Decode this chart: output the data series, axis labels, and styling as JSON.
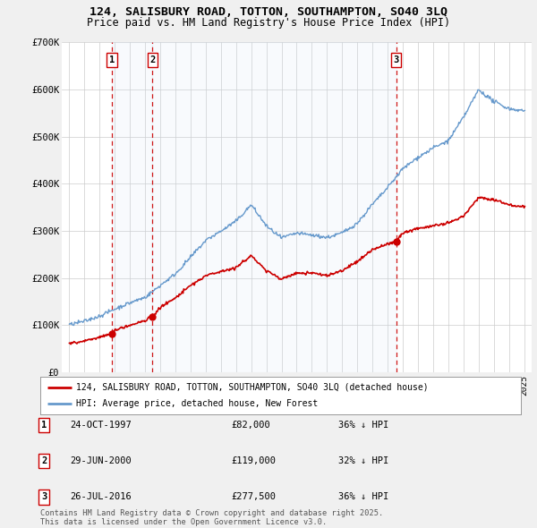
{
  "title": "124, SALISBURY ROAD, TOTTON, SOUTHAMPTON, SO40 3LQ",
  "subtitle": "Price paid vs. HM Land Registry's House Price Index (HPI)",
  "red_label": "124, SALISBURY ROAD, TOTTON, SOUTHAMPTON, SO40 3LQ (detached house)",
  "blue_label": "HPI: Average price, detached house, New Forest",
  "footnote": "Contains HM Land Registry data © Crown copyright and database right 2025.\nThis data is licensed under the Open Government Licence v3.0.",
  "sales": [
    {
      "num": 1,
      "date": "24-OCT-1997",
      "price": 82000,
      "pct": "36%",
      "dir": "↓",
      "x": 1997.81
    },
    {
      "num": 2,
      "date": "29-JUN-2000",
      "price": 119000,
      "pct": "32%",
      "dir": "↓",
      "x": 2000.49
    },
    {
      "num": 3,
      "date": "26-JUL-2016",
      "price": 277500,
      "pct": "36%",
      "dir": "↓",
      "x": 2016.57
    }
  ],
  "ylim": [
    0,
    700000
  ],
  "yticks": [
    0,
    100000,
    200000,
    300000,
    400000,
    500000,
    600000,
    700000
  ],
  "ytick_labels": [
    "£0",
    "£100K",
    "£200K",
    "£300K",
    "£400K",
    "£500K",
    "£600K",
    "£700K"
  ],
  "xlim": [
    1994.5,
    2025.5
  ],
  "red_color": "#cc0000",
  "blue_color": "#6699cc",
  "shade_color": "#d0e4f7",
  "dashed_color": "#cc0000",
  "bg_color": "#f0f0f0",
  "plot_bg": "#ffffff",
  "grid_color": "#cccccc",
  "hpi_anchors_x": [
    1995,
    1996,
    1997,
    1998,
    1999,
    2000,
    2001,
    2002,
    2003,
    2004,
    2005,
    2006,
    2007,
    2008,
    2009,
    2010,
    2011,
    2012,
    2013,
    2014,
    2015,
    2016,
    2017,
    2018,
    2019,
    2020,
    2021,
    2022,
    2023,
    2024,
    2025
  ],
  "hpi_anchors_y": [
    100000,
    108000,
    120000,
    135000,
    148000,
    160000,
    185000,
    210000,
    245000,
    280000,
    300000,
    320000,
    355000,
    310000,
    285000,
    295000,
    290000,
    285000,
    295000,
    315000,
    355000,
    390000,
    430000,
    455000,
    475000,
    490000,
    540000,
    600000,
    575000,
    560000,
    555000
  ],
  "red_anchors_x": [
    1995,
    1996,
    1997,
    1997.81,
    1998,
    1999,
    2000,
    2000.49,
    2001,
    2002,
    2003,
    2004,
    2005,
    2006,
    2007,
    2008,
    2009,
    2010,
    2011,
    2012,
    2013,
    2014,
    2015,
    2016,
    2016.57,
    2017,
    2018,
    2019,
    2020,
    2021,
    2022,
    2023,
    2024,
    2025
  ],
  "red_anchors_y": [
    62000,
    67000,
    75000,
    82000,
    90000,
    100000,
    110000,
    119000,
    138000,
    158000,
    185000,
    205000,
    215000,
    222000,
    248000,
    215000,
    198000,
    210000,
    210000,
    205000,
    215000,
    235000,
    260000,
    272000,
    277500,
    295000,
    305000,
    310000,
    315000,
    330000,
    370000,
    365000,
    355000,
    350000
  ]
}
